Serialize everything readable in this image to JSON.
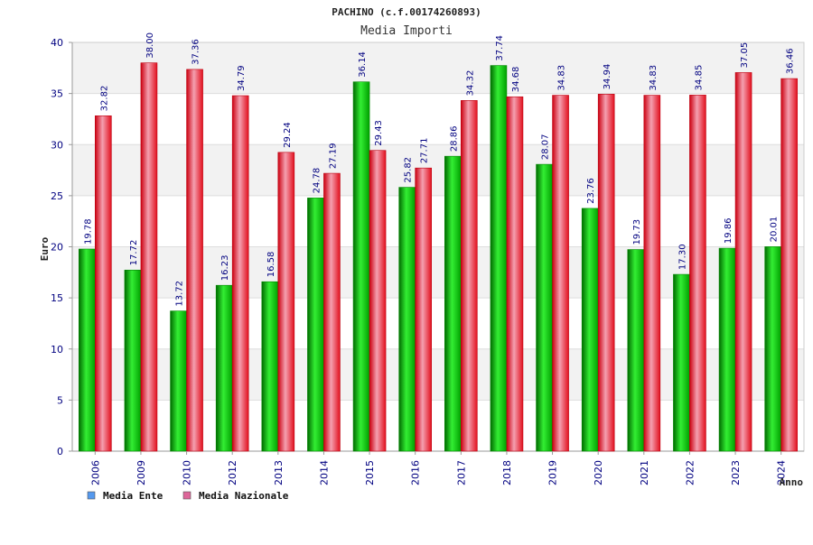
{
  "chart_data": {
    "type": "bar",
    "title": "PACHINO (c.f.00174260893)",
    "subtitle": "Media Importi",
    "xlabel": "Anno",
    "ylabel": "Euro",
    "ylim": [
      0,
      40
    ],
    "yticks": [
      0,
      5,
      10,
      15,
      20,
      25,
      30,
      35,
      40
    ],
    "grid": "horizontal bands",
    "legend_position": "bottom-left",
    "categories": [
      "2006",
      "2009",
      "2010",
      "2012",
      "2013",
      "2014",
      "2015",
      "2016",
      "2017",
      "2018",
      "2019",
      "2020",
      "2021",
      "2022",
      "2023",
      "2024"
    ],
    "series": [
      {
        "name": "Media Ente",
        "color": "#00b000",
        "legend_color": "#5599ee",
        "values": [
          19.78,
          17.72,
          13.72,
          16.23,
          16.58,
          24.78,
          36.14,
          25.82,
          28.86,
          37.74,
          28.07,
          23.76,
          19.73,
          17.3,
          19.86,
          20.01
        ],
        "labels": [
          "19.78",
          "17.72",
          "13.72",
          "16.23",
          "16.58",
          "24.78",
          "36.14",
          "25.82",
          "28.86",
          "37.74",
          "28.07",
          "23.76",
          "19.73",
          "17.30",
          "19.86",
          "20.01"
        ]
      },
      {
        "name": "Media Nazionale",
        "color": "#e8101c",
        "legend_color": "#dd6699",
        "values": [
          32.82,
          38.0,
          37.36,
          34.79,
          29.24,
          27.19,
          29.43,
          27.71,
          34.32,
          34.68,
          34.83,
          34.94,
          34.83,
          34.85,
          37.05,
          36.46
        ],
        "labels": [
          "32.82",
          "38.00",
          "37.36",
          "34.79",
          "29.24",
          "27.19",
          "29.43",
          "27.71",
          "34.32",
          "34.68",
          "34.83",
          "34.94",
          "34.83",
          "34.85",
          "37.05",
          "36.46"
        ]
      }
    ]
  }
}
